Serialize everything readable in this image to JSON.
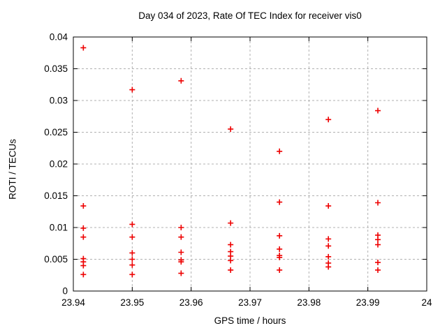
{
  "chart_data": {
    "type": "scatter",
    "title": "Day 034 of 2023, Rate Of TEC Index for receiver vis0",
    "xlabel": "GPS time / hours",
    "ylabel": "ROTI / TECUs",
    "xlim": [
      23.94,
      24
    ],
    "ylim": [
      0,
      0.04
    ],
    "xticks": [
      23.94,
      23.95,
      23.96,
      23.97,
      23.98,
      23.99,
      24
    ],
    "xtick_labels": [
      "23.94",
      "23.95",
      "23.96",
      "23.97",
      "23.98",
      "23.99",
      "24"
    ],
    "yticks": [
      0,
      0.005,
      0.01,
      0.015,
      0.02,
      0.025,
      0.03,
      0.035,
      0.04
    ],
    "ytick_labels": [
      "0",
      "0.005",
      "0.01",
      "0.015",
      "0.02",
      "0.025",
      "0.03",
      "0.035",
      "0.04"
    ],
    "grid": true,
    "legend": "none",
    "marker": {
      "shape": "plus",
      "color": "#ee0000"
    },
    "grid_color": "#b0b0b0",
    "border_color": "#000000",
    "series": [
      {
        "name": "ROTI",
        "points": [
          [
            23.9417,
            0.0383
          ],
          [
            23.9417,
            0.0134
          ],
          [
            23.9417,
            0.0099
          ],
          [
            23.9417,
            0.0085
          ],
          [
            23.9417,
            0.0051
          ],
          [
            23.9417,
            0.0046
          ],
          [
            23.9417,
            0.004
          ],
          [
            23.9417,
            0.0026
          ],
          [
            23.95,
            0.0317
          ],
          [
            23.95,
            0.0105
          ],
          [
            23.95,
            0.0085
          ],
          [
            23.95,
            0.006
          ],
          [
            23.95,
            0.005
          ],
          [
            23.95,
            0.0041
          ],
          [
            23.95,
            0.0026
          ],
          [
            23.9583,
            0.0331
          ],
          [
            23.9583,
            0.01
          ],
          [
            23.9583,
            0.0085
          ],
          [
            23.9583,
            0.0061
          ],
          [
            23.9583,
            0.0049
          ],
          [
            23.9583,
            0.0046
          ],
          [
            23.9583,
            0.0028
          ],
          [
            23.9667,
            0.0255
          ],
          [
            23.9667,
            0.0107
          ],
          [
            23.9667,
            0.0073
          ],
          [
            23.9667,
            0.0062
          ],
          [
            23.9667,
            0.0055
          ],
          [
            23.9667,
            0.0048
          ],
          [
            23.9667,
            0.0033
          ],
          [
            23.975,
            0.022
          ],
          [
            23.975,
            0.014
          ],
          [
            23.975,
            0.0087
          ],
          [
            23.975,
            0.0066
          ],
          [
            23.975,
            0.0056
          ],
          [
            23.975,
            0.0053
          ],
          [
            23.975,
            0.0033
          ],
          [
            23.9833,
            0.027
          ],
          [
            23.9833,
            0.0134
          ],
          [
            23.9833,
            0.0082
          ],
          [
            23.9833,
            0.0071
          ],
          [
            23.9833,
            0.0054
          ],
          [
            23.9833,
            0.0044
          ],
          [
            23.9833,
            0.0038
          ],
          [
            23.9917,
            0.0284
          ],
          [
            23.9917,
            0.0139
          ],
          [
            23.9917,
            0.0088
          ],
          [
            23.9917,
            0.0081
          ],
          [
            23.9917,
            0.0073
          ],
          [
            23.9917,
            0.0045
          ],
          [
            23.9917,
            0.0033
          ]
        ]
      }
    ]
  }
}
